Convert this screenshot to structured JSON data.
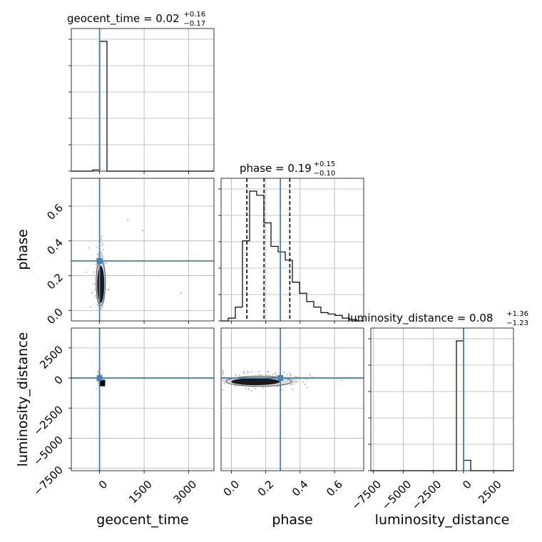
{
  "chart_data": {
    "type": "corner",
    "parameters": [
      "geocent_time",
      "phase",
      "luminosity_distance"
    ],
    "truth_color": "#4682b4",
    "grid": true,
    "titles": {
      "geocent_time": {
        "label": "geocent_time = 0.02",
        "plus": "+0.16",
        "minus": "−0.17"
      },
      "phase": {
        "label": "phase = 0.19",
        "plus": "+0.15",
        "minus": "−0.10"
      },
      "luminosity_distance": {
        "label": "luminosity_distance = 0.08",
        "plus": "+1.36",
        "minus": "−1.23"
      }
    },
    "xlabels": [
      "geocent_time",
      "phase",
      "luminosity_distance"
    ],
    "ylabels": [
      "phase",
      "luminosity_distance"
    ],
    "axes": {
      "geocent_time": {
        "range": [
          -950,
          3850
        ],
        "ticks": [
          0,
          1500,
          3000
        ],
        "ticklabels": [
          "0",
          "1500",
          "3000"
        ]
      },
      "phase": {
        "range": [
          -0.06,
          0.77
        ],
        "ticks": [
          0.0,
          0.2,
          0.4,
          0.6
        ],
        "ticklabels": [
          "0.0",
          "0.2",
          "0.4",
          "0.6"
        ]
      },
      "luminosity_distance": {
        "range": [
          -7700,
          4150
        ],
        "ticks": [
          -7500,
          -5000,
          -2500,
          0,
          2500
        ],
        "ticklabels": [
          "−7500",
          "−5000",
          "−2500",
          "0",
          "2500"
        ]
      }
    },
    "truths": {
      "geocent_time": 0,
      "phase": 0.285,
      "luminosity_distance": 0
    },
    "quantiles": {
      "phase": [
        0.09,
        0.19,
        0.34
      ]
    },
    "histograms": {
      "geocent_time": {
        "edges": [
          -950,
          -710,
          -470,
          -230,
          10,
          250,
          490,
          730,
          970,
          1210,
          1450,
          1690,
          1930,
          2170,
          2410,
          2650,
          2890,
          3130,
          3370,
          3610,
          3850
        ],
        "counts": [
          0,
          0,
          0,
          0.01,
          1.0,
          0,
          0,
          0,
          0,
          0,
          0,
          0,
          0,
          0,
          0,
          0,
          0,
          0,
          0,
          0
        ]
      },
      "phase": {
        "edges": [
          -0.06,
          -0.0185,
          0.023,
          0.0645,
          0.106,
          0.1475,
          0.189,
          0.2305,
          0.272,
          0.3135,
          0.355,
          0.3965,
          0.438,
          0.4795,
          0.521,
          0.5625,
          0.604,
          0.6455,
          0.687,
          0.7285,
          0.77
        ],
        "counts": [
          0.0,
          0.02,
          0.1,
          0.58,
          0.94,
          0.91,
          0.71,
          0.54,
          0.5,
          0.44,
          0.28,
          0.2,
          0.14,
          0.1,
          0.06,
          0.05,
          0.04,
          0.02,
          0.01,
          0.0
        ]
      },
      "luminosity_distance": {
        "edges": [
          -7700,
          -7107.5,
          -6515,
          -5922.5,
          -5330,
          -4737.5,
          -4145,
          -3552.5,
          -2960,
          -2367.5,
          -1775,
          -1182.5,
          -590,
          2.5,
          595,
          1187.5,
          1780,
          2372.5,
          2965,
          3557.5,
          4150
        ],
        "counts": [
          0,
          0,
          0,
          0,
          0,
          0,
          0,
          0,
          0,
          0,
          0,
          0,
          1.0,
          0.08,
          0,
          0,
          0,
          0,
          0,
          0
        ]
      }
    }
  }
}
